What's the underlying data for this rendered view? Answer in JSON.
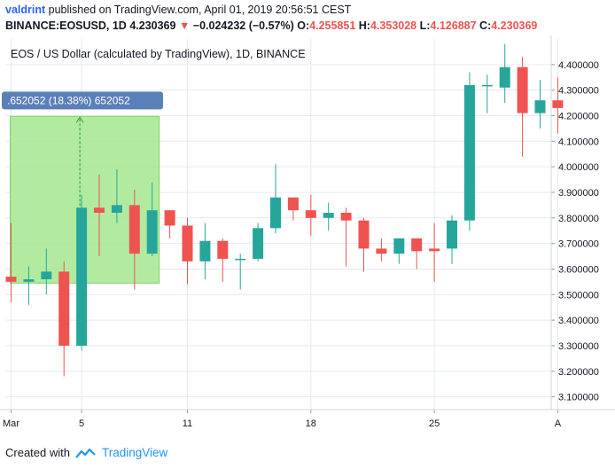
{
  "header": {
    "user": "valdrint",
    "published": "published on TradingView.com, April 01, 2019 20:56:51 CEST",
    "symbol": "BINANCE:EOSUSD, 1D",
    "last": "4.230369",
    "change_arrow": "▼",
    "change": "−0.024232 (−0.57%)",
    "o_label": "O:",
    "o": "4.255851",
    "h_label": "H:",
    "h": "4.353028",
    "l_label": "L:",
    "l": "4.126887",
    "c_label": "C:",
    "c": "4.230369"
  },
  "footer": {
    "created_with": "Created with",
    "brand": "TradingView"
  },
  "chart_data": {
    "type": "candlestick",
    "title": "EOS / US Dollar (calculated by TradingView), 1D, BINANCE",
    "ylim": [
      3.05,
      4.5
    ],
    "y_ticks": [
      3.1,
      3.2,
      3.3,
      3.4,
      3.5,
      3.6,
      3.7,
      3.8,
      3.9,
      4.0,
      4.1,
      4.2,
      4.3,
      4.4
    ],
    "y_tick_labels": [
      "3.100000",
      "3.200000",
      "3.300000",
      "3.400000",
      "3.500000",
      "3.600000",
      "3.700000",
      "3.800000",
      "3.900000",
      "4.000000",
      "4.100000",
      "4.200000",
      "4.300000",
      "4.400000"
    ],
    "x_ticks": [
      {
        "index": 0,
        "label": "Mar"
      },
      {
        "index": 4,
        "label": "5"
      },
      {
        "index": 10,
        "label": "11"
      },
      {
        "index": 17,
        "label": "18"
      },
      {
        "index": 24,
        "label": "25"
      },
      {
        "index": 31,
        "label": "A"
      }
    ],
    "colors": {
      "up": "#26a69a",
      "down": "#ef5350",
      "grid": "#e6e9ef",
      "axis": "#d1d4dc",
      "range": "#a5e88f",
      "range_label_bg": "#5b7fb8"
    },
    "candles": [
      {
        "o": 3.57,
        "h": 3.78,
        "l": 3.47,
        "c": 3.55
      },
      {
        "o": 3.55,
        "h": 3.61,
        "l": 3.46,
        "c": 3.56
      },
      {
        "o": 3.56,
        "h": 3.68,
        "l": 3.5,
        "c": 3.59
      },
      {
        "o": 3.59,
        "h": 3.63,
        "l": 3.18,
        "c": 3.3
      },
      {
        "o": 3.3,
        "h": 3.89,
        "l": 3.28,
        "c": 3.84
      },
      {
        "o": 3.84,
        "h": 3.97,
        "l": 3.65,
        "c": 3.82
      },
      {
        "o": 3.82,
        "h": 3.99,
        "l": 3.78,
        "c": 3.85
      },
      {
        "o": 3.85,
        "h": 3.91,
        "l": 3.52,
        "c": 3.66
      },
      {
        "o": 3.66,
        "h": 3.94,
        "l": 3.65,
        "c": 3.83
      },
      {
        "o": 3.83,
        "h": 3.83,
        "l": 3.72,
        "c": 3.77
      },
      {
        "o": 3.77,
        "h": 3.8,
        "l": 3.54,
        "c": 3.63
      },
      {
        "o": 3.63,
        "h": 3.78,
        "l": 3.56,
        "c": 3.71
      },
      {
        "o": 3.71,
        "h": 3.72,
        "l": 3.55,
        "c": 3.64
      },
      {
        "o": 3.64,
        "h": 3.66,
        "l": 3.52,
        "c": 3.64
      },
      {
        "o": 3.64,
        "h": 3.78,
        "l": 3.63,
        "c": 3.76
      },
      {
        "o": 3.76,
        "h": 4.01,
        "l": 3.74,
        "c": 3.88
      },
      {
        "o": 3.88,
        "h": 3.88,
        "l": 3.79,
        "c": 3.83
      },
      {
        "o": 3.83,
        "h": 3.89,
        "l": 3.73,
        "c": 3.8
      },
      {
        "o": 3.8,
        "h": 3.86,
        "l": 3.75,
        "c": 3.82
      },
      {
        "o": 3.82,
        "h": 3.84,
        "l": 3.61,
        "c": 3.79
      },
      {
        "o": 3.79,
        "h": 3.8,
        "l": 3.59,
        "c": 3.68
      },
      {
        "o": 3.68,
        "h": 3.72,
        "l": 3.63,
        "c": 3.66
      },
      {
        "o": 3.66,
        "h": 3.72,
        "l": 3.62,
        "c": 3.72
      },
      {
        "o": 3.72,
        "h": 3.72,
        "l": 3.6,
        "c": 3.67
      },
      {
        "o": 3.68,
        "h": 3.78,
        "l": 3.55,
        "c": 3.67
      },
      {
        "o": 3.68,
        "h": 3.81,
        "l": 3.62,
        "c": 3.79
      },
      {
        "o": 3.79,
        "h": 4.37,
        "l": 3.75,
        "c": 4.32
      },
      {
        "o": 4.32,
        "h": 4.36,
        "l": 4.21,
        "c": 4.32
      },
      {
        "o": 4.31,
        "h": 4.48,
        "l": 4.25,
        "c": 4.39
      },
      {
        "o": 4.39,
        "h": 4.43,
        "l": 4.04,
        "c": 4.21
      },
      {
        "o": 4.21,
        "h": 4.34,
        "l": 4.15,
        "c": 4.26
      },
      {
        "o": 4.26,
        "h": 4.35,
        "l": 4.13,
        "c": 4.23
      }
    ],
    "range_measure": {
      "from_index": 0,
      "to_index": 8,
      "low": 3.545,
      "high": 4.197,
      "label": ".652052 (18.38%) 652052"
    }
  }
}
